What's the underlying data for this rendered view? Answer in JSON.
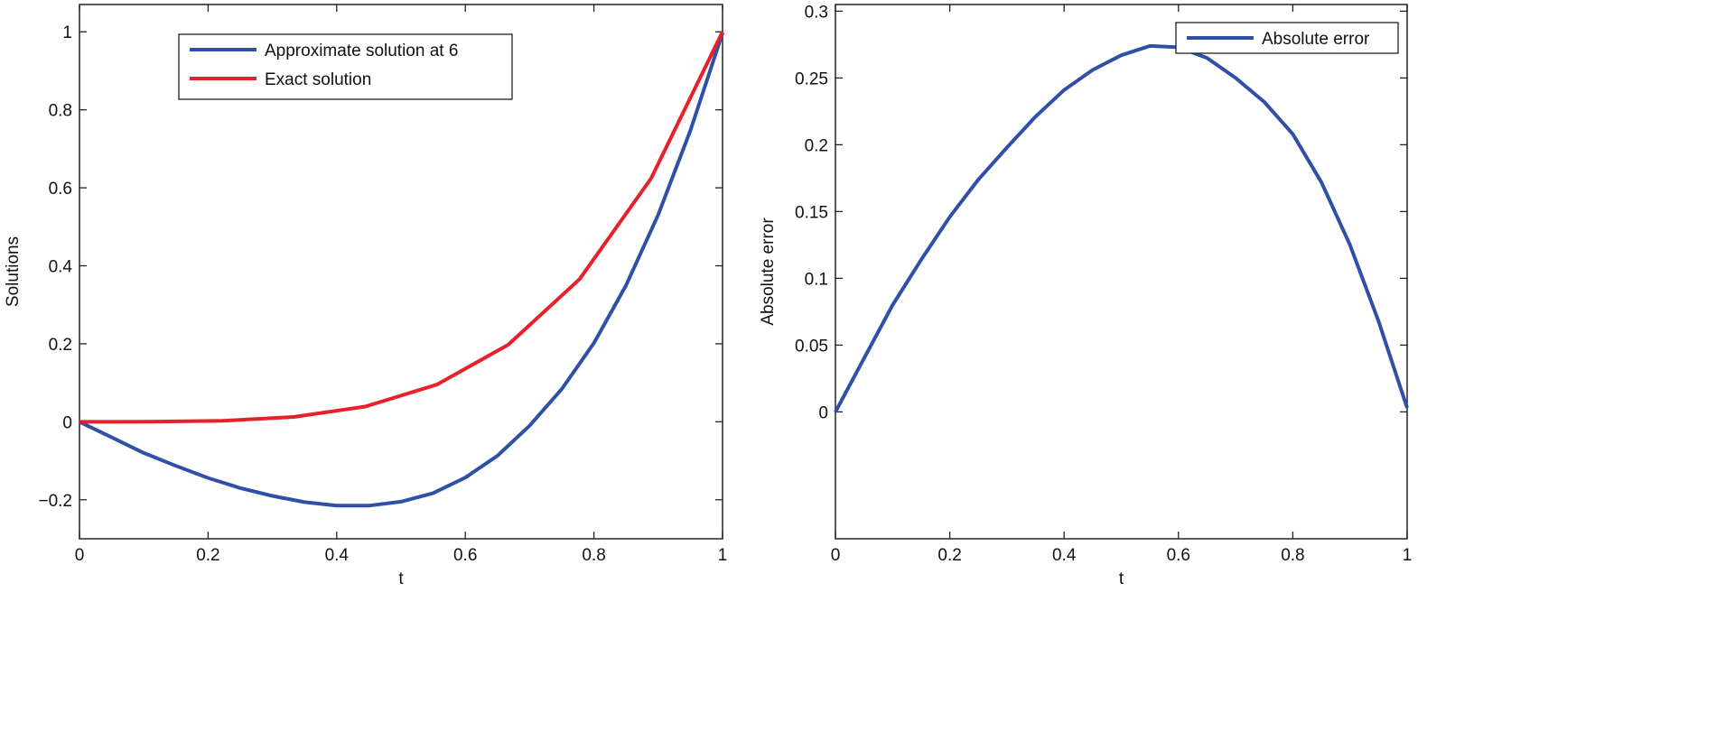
{
  "chart_data": [
    {
      "type": "line",
      "xlabel": "t",
      "ylabel": "Solutions",
      "xlim": [
        0,
        1
      ],
      "ylim": [
        -0.3,
        1.07
      ],
      "xticks": [
        0,
        0.2,
        0.4,
        0.6,
        0.8,
        1
      ],
      "xtick_labels": [
        "0",
        "0.2",
        "0.4",
        "0.6",
        "0.8",
        "1"
      ],
      "yticks": [
        -0.2,
        0,
        0.2,
        0.4,
        0.6,
        0.8,
        1
      ],
      "ytick_labels": [
        "−0.2",
        "0",
        "0.2",
        "0.4",
        "0.6",
        "0.8",
        "1"
      ],
      "grid": false,
      "legend_position": "top-center",
      "series": [
        {
          "name": "Approximate solution at 6",
          "color": "#3050a8",
          "x": [
            0,
            0.05,
            0.1,
            0.15,
            0.2,
            0.25,
            0.3,
            0.35,
            0.4,
            0.45,
            0.5,
            0.55,
            0.6,
            0.65,
            0.7,
            0.75,
            0.8,
            0.85,
            0.9,
            0.95,
            1
          ],
          "y": [
            0,
            -0.04,
            -0.08,
            -0.113,
            -0.144,
            -0.17,
            -0.19,
            -0.206,
            -0.215,
            -0.215,
            -0.205,
            -0.183,
            -0.143,
            -0.087,
            -0.01,
            0.084,
            0.202,
            0.35,
            0.531,
            0.747,
            0.997
          ]
        },
        {
          "name": "Exact solution",
          "color": "#e8202a",
          "x": [
            0,
            0.1111,
            0.2222,
            0.3333,
            0.4444,
            0.5556,
            0.6667,
            0.7778,
            0.8889,
            1
          ],
          "y": [
            0,
            0.0002,
            0.0024,
            0.0123,
            0.039,
            0.0953,
            0.1975,
            0.366,
            0.6243,
            1
          ]
        }
      ]
    },
    {
      "type": "line",
      "xlabel": "t",
      "ylabel": "Absolute error",
      "xlim": [
        0,
        1
      ],
      "ylim": [
        -0.095,
        0.305
      ],
      "xticks": [
        0,
        0.2,
        0.4,
        0.6,
        0.8,
        1
      ],
      "xtick_labels": [
        "0",
        "0.2",
        "0.4",
        "0.6",
        "0.8",
        "1"
      ],
      "yticks": [
        0,
        0.05,
        0.1,
        0.15,
        0.2,
        0.25,
        0.3
      ],
      "ytick_labels": [
        "0",
        "0.05",
        "0.1",
        "0.15",
        "0.2",
        "0.25",
        "0.3"
      ],
      "grid": false,
      "legend_position": "top-right",
      "series": [
        {
          "name": "Absolute error",
          "color": "#3050a8",
          "x": [
            0,
            0.05,
            0.1,
            0.15,
            0.2,
            0.25,
            0.3,
            0.35,
            0.4,
            0.45,
            0.5,
            0.55,
            0.6,
            0.65,
            0.7,
            0.75,
            0.8,
            0.85,
            0.9,
            0.95,
            1
          ],
          "y": [
            0,
            0.04,
            0.08,
            0.114,
            0.146,
            0.174,
            0.198,
            0.221,
            0.241,
            0.256,
            0.267,
            0.274,
            0.273,
            0.265,
            0.25,
            0.232,
            0.208,
            0.172,
            0.125,
            0.068,
            0.003
          ]
        }
      ]
    }
  ]
}
